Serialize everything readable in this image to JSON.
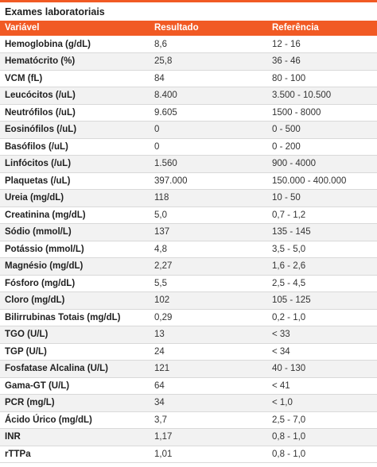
{
  "title": "Exames laboratoriais",
  "colors": {
    "accent": "#f15a24",
    "stripe": "#f2f2f2"
  },
  "headers": {
    "variable": "Variável",
    "result": "Resultado",
    "reference": "Referência"
  },
  "rows": [
    {
      "variable": "Hemoglobina (g/dL)",
      "result": "8,6",
      "reference": "12 - 16"
    },
    {
      "variable": "Hematócrito (%)",
      "result": "25,8",
      "reference": "36 - 46"
    },
    {
      "variable": "VCM (fL)",
      "result": "84",
      "reference": "80 - 100"
    },
    {
      "variable": "Leucócitos (/uL)",
      "result": "8.400",
      "reference": "3.500 - 10.500"
    },
    {
      "variable": "Neutrófilos (/uL)",
      "result": "9.605",
      "reference": "1500 - 8000"
    },
    {
      "variable": "Eosinófilos (/uL)",
      "result": "0",
      "reference": "0 - 500"
    },
    {
      "variable": "Basófilos (/uL)",
      "result": "0",
      "reference": "0 - 200"
    },
    {
      "variable": "Linfócitos (/uL)",
      "result": "1.560",
      "reference": "900 - 4000"
    },
    {
      "variable": "Plaquetas (/uL)",
      "result": "397.000",
      "reference": "150.000 - 400.000"
    },
    {
      "variable": "Ureia (mg/dL)",
      "result": "118",
      "reference": "10 - 50"
    },
    {
      "variable": "Creatinina (mg/dL)",
      "result": "5,0",
      "reference": "0,7 - 1,2"
    },
    {
      "variable": "Sódio (mmol/L)",
      "result": "137",
      "reference": "135 - 145"
    },
    {
      "variable": "Potássio (mmol/L)",
      "result": "4,8",
      "reference": "3,5 - 5,0"
    },
    {
      "variable": "Magnésio (mg/dL)",
      "result": "2,27",
      "reference": "1,6 - 2,6"
    },
    {
      "variable": "Fósforo (mg/dL)",
      "result": "5,5",
      "reference": "2,5 - 4,5"
    },
    {
      "variable": "Cloro (mg/dL)",
      "result": "102",
      "reference": "105 - 125"
    },
    {
      "variable": "Bilirrubinas Totais (mg/dL)",
      "result": "0,29",
      "reference": "0,2 - 1,0"
    },
    {
      "variable": "TGO (U/L)",
      "result": "13",
      "reference": "< 33"
    },
    {
      "variable": "TGP (U/L)",
      "result": "24",
      "reference": "< 34"
    },
    {
      "variable": "Fosfatase Alcalina (U/L)",
      "result": "121",
      "reference": "40 - 130"
    },
    {
      "variable": "Gama-GT (U/L)",
      "result": "64",
      "reference": "< 41"
    },
    {
      "variable": "PCR (mg/L)",
      "result": "34",
      "reference": "< 1,0"
    },
    {
      "variable": "Ácido Úrico (mg/dL)",
      "result": "3,7",
      "reference": "2,5 - 7,0"
    },
    {
      "variable": "INR",
      "result": "1,17",
      "reference": "0,8 - 1,0"
    },
    {
      "variable": "rTTPa",
      "result": "1,01",
      "reference": "0,8 - 1,0"
    }
  ]
}
